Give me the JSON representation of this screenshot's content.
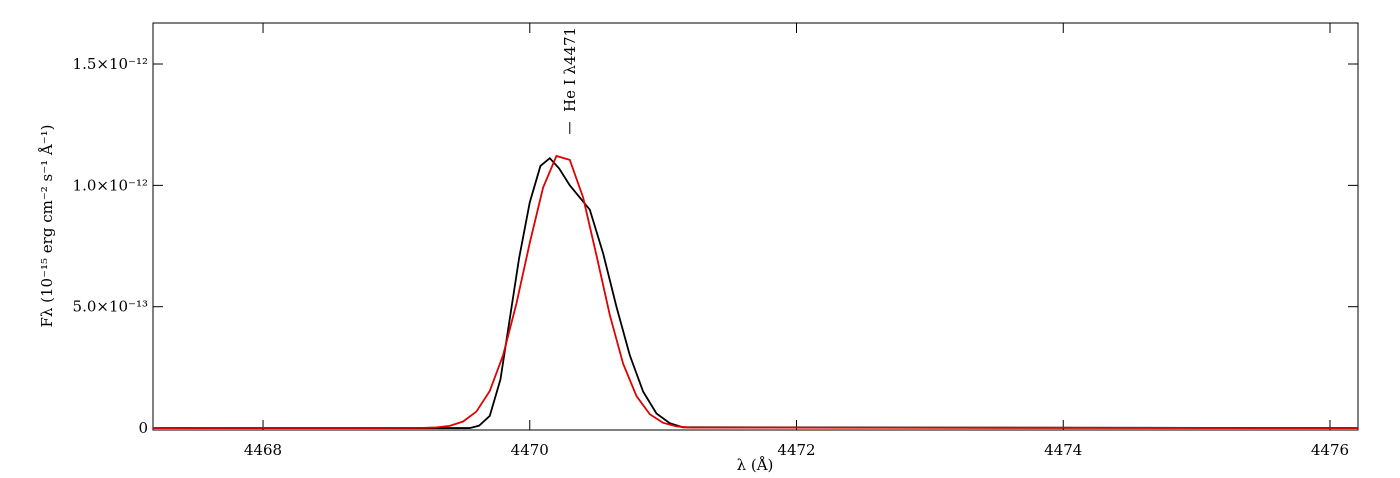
{
  "chart_data": {
    "type": "line",
    "x_label": "λ (Å)",
    "y_label": "Fλ (10⁻¹⁵ erg cm⁻² s⁻¹ Å⁻¹)",
    "annotation": {
      "text": "He I λ4471",
      "x": 4470.3
    },
    "xlim": [
      4467.175,
      4476.21
    ],
    "xticks": [
      4468,
      4470,
      4472,
      4474,
      4476
    ],
    "ylim": [
      -8e-15,
      1.669e-12
    ],
    "yticks": [
      0,
      {
        "value": 5e-13,
        "label": "5.0×10⁻¹³"
      },
      {
        "value": 1e-12,
        "label": "1.0×10⁻¹²"
      },
      {
        "value": 1.5e-12,
        "label": "1.5×10⁻¹²"
      }
    ],
    "series": [
      {
        "color": "#000000",
        "x": [
          4467.175,
          4469.55,
          4469.62,
          4469.7,
          4469.78,
          4469.85,
          4469.92,
          4470.0,
          4470.08,
          4470.15,
          4470.22,
          4470.3,
          4470.36,
          4470.45,
          4470.55,
          4470.65,
          4470.75,
          4470.85,
          4470.95,
          4471.05,
          4471.15,
          4476.21
        ],
        "values": [
          0,
          0,
          1e-14,
          5e-14,
          2e-13,
          4.5e-13,
          7e-13,
          9.3e-13,
          1.08e-12,
          1.112e-12,
          1.07e-12,
          1e-12,
          9.6e-13,
          9e-13,
          7.2e-13,
          5e-13,
          3e-13,
          1.5e-13,
          6e-14,
          2e-14,
          3e-15,
          0
        ]
      },
      {
        "color": "#e00000",
        "x": [
          4467.175,
          4469.2,
          4469.3,
          4469.4,
          4469.5,
          4469.6,
          4469.7,
          4469.8,
          4469.9,
          4470.0,
          4470.1,
          4470.2,
          4470.3,
          4470.4,
          4470.5,
          4470.6,
          4470.7,
          4470.8,
          4470.9,
          4471.0,
          4471.1,
          4471.2,
          4476.21
        ],
        "values": [
          0,
          7e-16,
          2.6e-15,
          9e-15,
          2.7e-14,
          6.8e-14,
          1.53e-13,
          3e-13,
          5.13e-13,
          7.63e-13,
          9.91e-13,
          1.121e-12,
          1.105e-12,
          9.5e-13,
          7.12e-13,
          4.66e-13,
          2.65e-13,
          1.32e-13,
          5.7e-14,
          2.16e-14,
          7e-15,
          2e-15,
          0
        ]
      }
    ]
  }
}
